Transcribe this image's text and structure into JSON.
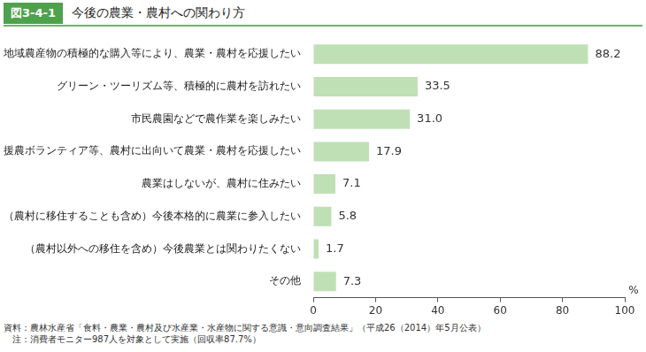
{
  "figure_label": "図3-4-1",
  "notes": [
    "資料：農林水産省「食料・農業・農村及び水産業・水産物に関する意識・意向調査結果」（平成26（2014）年5月公表）",
    "　注：消費者モニター987人を対象として実施（回収率87.7%）"
  ],
  "chart_data": {
    "type": "bar",
    "title": "今後の農業・農村への関わり方",
    "orientation": "horizontal",
    "categories": [
      "地域農産物の積極的な購入等により、農業・農村を応援したい",
      "グリーン・ツーリズム等、積極的に農村を訪れたい",
      "市民農園などで農作業を楽しみたい",
      "援農ボランティア等、農村に出向いて農業・農村を応援したい",
      "農業はしないが、農村に住みたい",
      "（農村に移住することも含め）今後本格的に農業に参入したい",
      "（農村以外への移住を含め）今後農業とは関わりたくない",
      "その他"
    ],
    "values": [
      88.2,
      33.5,
      31.0,
      17.9,
      7.1,
      5.8,
      1.7,
      7.3
    ],
    "value_labels": [
      "88.2",
      "33.5",
      "31.0",
      "17.9",
      "7.1",
      "5.8",
      "1.7",
      "7.3"
    ],
    "color": "#bfe0b5",
    "xlabel": "%",
    "xlim": [
      0,
      100
    ],
    "xticks": [
      0,
      20,
      40,
      60,
      80,
      100
    ],
    "data_labels": true,
    "grid": false
  }
}
